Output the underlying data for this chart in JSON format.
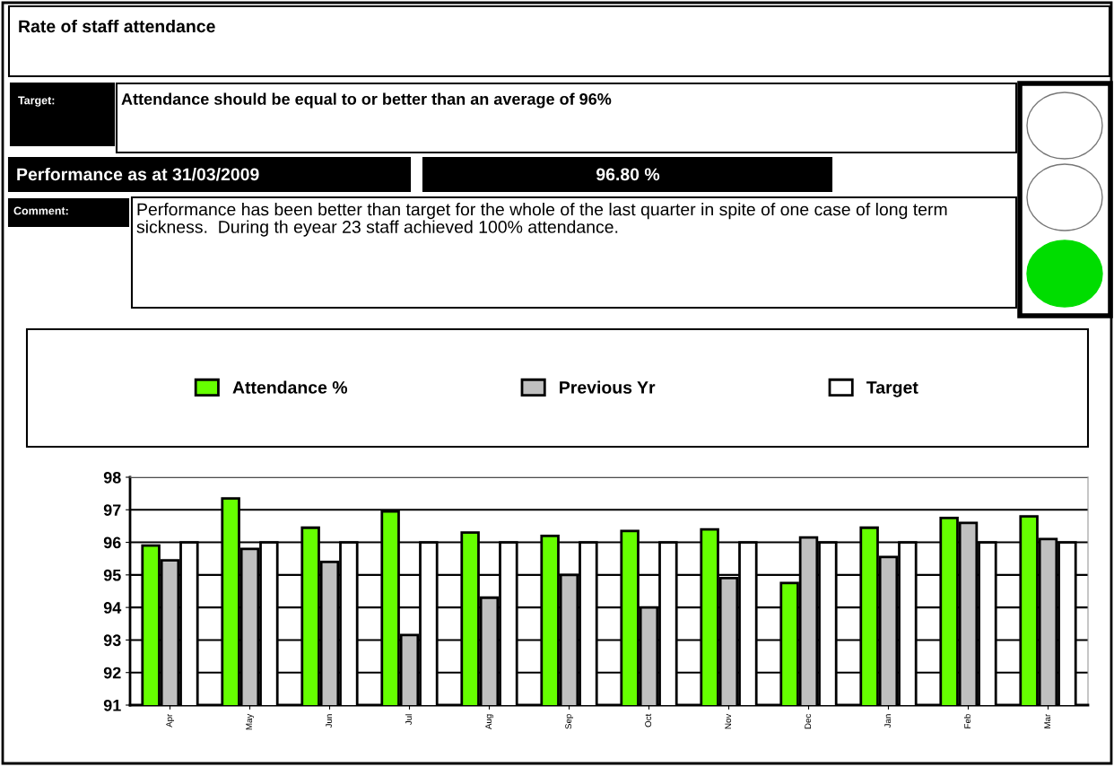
{
  "chart_data": {
    "type": "bar",
    "title": "Rate of staff attendance",
    "categories": [
      "Apr",
      "May",
      "Jun",
      "Jul",
      "Aug",
      "Sep",
      "Oct",
      "Nov",
      "Dec",
      "Jan",
      "Feb",
      "Mar"
    ],
    "series": [
      {
        "name": "Attendance %",
        "color": "#66ff00",
        "values": [
          95.9,
          97.35,
          96.45,
          96.95,
          96.3,
          96.2,
          96.35,
          96.4,
          94.75,
          96.45,
          96.75,
          96.8
        ]
      },
      {
        "name": "Previous Yr",
        "color": "#c0c0c0",
        "values": [
          95.45,
          95.8,
          95.4,
          93.15,
          94.3,
          95.0,
          94.0,
          94.9,
          96.15,
          95.55,
          96.6,
          96.1
        ]
      },
      {
        "name": "Target",
        "color": "#ffffff",
        "values": [
          96,
          96,
          96,
          96,
          96,
          96,
          96,
          96,
          96,
          96,
          96,
          96
        ]
      }
    ],
    "ylim": [
      91,
      98
    ],
    "yticks": [
      91,
      92,
      93,
      94,
      95,
      96,
      97,
      98
    ],
    "grid": "y",
    "legend": "top",
    "annotations": [
      "Target:",
      "Attendance should be equal to or better than an average of 96%",
      "Performance as at 31/03/2009",
      "96.80 %",
      "Comment:",
      "Performance has been better than target for the whole of the last quarter in spite of one case of long term sickness.  During th eyear 23 staff achieved 100% attendance."
    ]
  }
}
